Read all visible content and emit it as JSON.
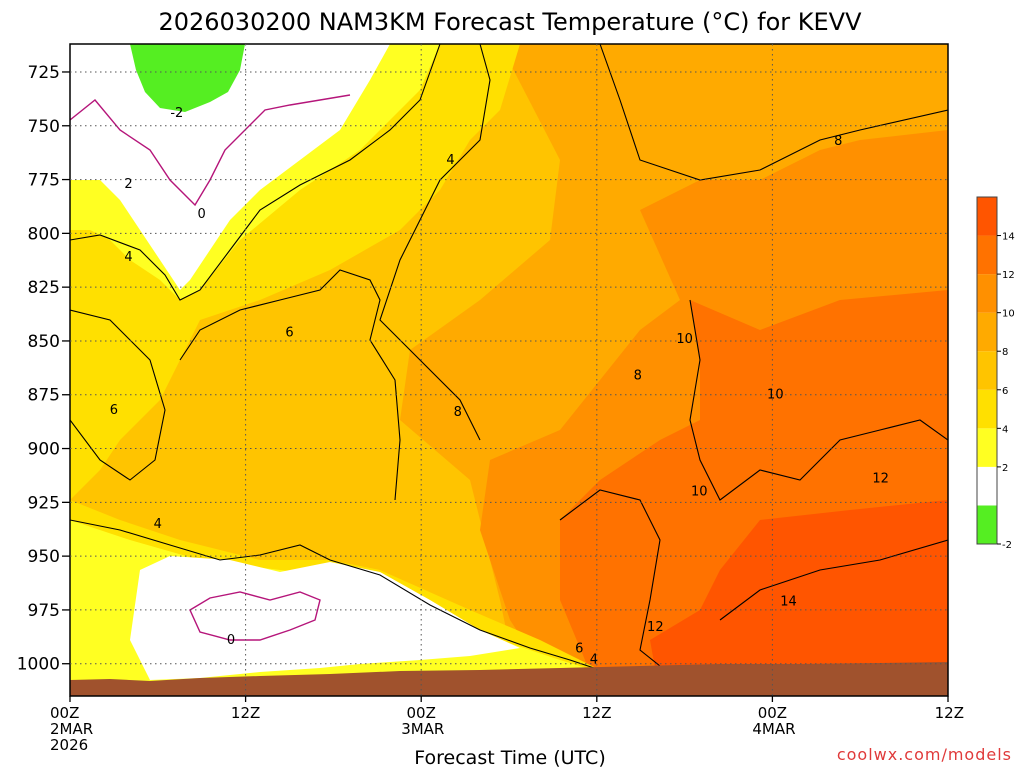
{
  "chart_data": {
    "type": "heatmap",
    "title": "2026030200 NAM3KM Forecast Temperature (°C) for KEVV",
    "xlabel": "Forecast Time (UTC)",
    "ylabel": "",
    "y_ticks": [
      "725",
      "750",
      "775",
      "800",
      "825",
      "850",
      "875",
      "900",
      "925",
      "950",
      "975",
      "1000"
    ],
    "y_values": [
      725,
      750,
      775,
      800,
      825,
      850,
      875,
      900,
      925,
      950,
      975,
      1000
    ],
    "ylim": [
      712,
      1015
    ],
    "x_ticks": [
      {
        "hour": 0,
        "l1": "00Z",
        "l2": "2MAR",
        "l3": "2026"
      },
      {
        "hour": 12,
        "l1": "12Z",
        "l2": "",
        "l3": ""
      },
      {
        "hour": 24,
        "l1": "00Z",
        "l2": "3MAR",
        "l3": ""
      },
      {
        "hour": 36,
        "l1": "12Z",
        "l2": "",
        "l3": ""
      },
      {
        "hour": 48,
        "l1": "00Z",
        "l2": "4MAR",
        "l3": ""
      },
      {
        "hour": 60,
        "l1": "12Z",
        "l2": "",
        "l3": ""
      }
    ],
    "xlim": [
      0,
      60
    ],
    "contour_labels": [
      {
        "text": "-2",
        "hour": 7.3,
        "p": 744
      },
      {
        "text": "2",
        "hour": 4.0,
        "p": 777
      },
      {
        "text": "0",
        "hour": 9.0,
        "p": 791
      },
      {
        "text": "4",
        "hour": 4.0,
        "p": 811
      },
      {
        "text": "4",
        "hour": 26.0,
        "p": 766
      },
      {
        "text": "6",
        "hour": 15.0,
        "p": 846
      },
      {
        "text": "6",
        "hour": 3.0,
        "p": 882
      },
      {
        "text": "4",
        "hour": 6.0,
        "p": 935
      },
      {
        "text": "0",
        "hour": 11.0,
        "p": 989
      },
      {
        "text": "8",
        "hour": 26.5,
        "p": 883
      },
      {
        "text": "8",
        "hour": 38.8,
        "p": 866
      },
      {
        "text": "8",
        "hour": 52.5,
        "p": 757
      },
      {
        "text": "10",
        "hour": 42.0,
        "p": 849
      },
      {
        "text": "10",
        "hour": 48.2,
        "p": 875
      },
      {
        "text": "10",
        "hour": 43.0,
        "p": 920
      },
      {
        "text": "12",
        "hour": 55.4,
        "p": 914
      },
      {
        "text": "12",
        "hour": 40.0,
        "p": 983
      },
      {
        "text": "14",
        "hour": 49.1,
        "p": 971
      },
      {
        "text": "6",
        "hour": 34.8,
        "p": 993
      },
      {
        "text": "4",
        "hour": 35.8,
        "p": 998
      }
    ],
    "colorbar": {
      "levels": [
        -2,
        0,
        2,
        4,
        6,
        8,
        10,
        12,
        14,
        16
      ],
      "labels": [
        "-2",
        "2",
        "4",
        "6",
        "8",
        "10",
        "12",
        "14"
      ],
      "colors": [
        "#55ee22",
        "#ffffff",
        "#ffff22",
        "#ffe000",
        "#ffc400",
        "#ffaa00",
        "#ff9000",
        "#ff7200",
        "#ff5500"
      ]
    },
    "field_colors": {
      "green": "#55ee22",
      "white": "#ffffff",
      "yellow": "#ffff22",
      "gold": "#ffe000",
      "amber": "#ffc400",
      "orange_lt": "#ffaa00",
      "orange": "#ff9000",
      "orange_dk": "#ff7200",
      "red_orange": "#ff5500",
      "ground": "#a0522d",
      "magenta": "#b5157a"
    }
  },
  "footer": {
    "watermark": "coolwx.com/models"
  }
}
